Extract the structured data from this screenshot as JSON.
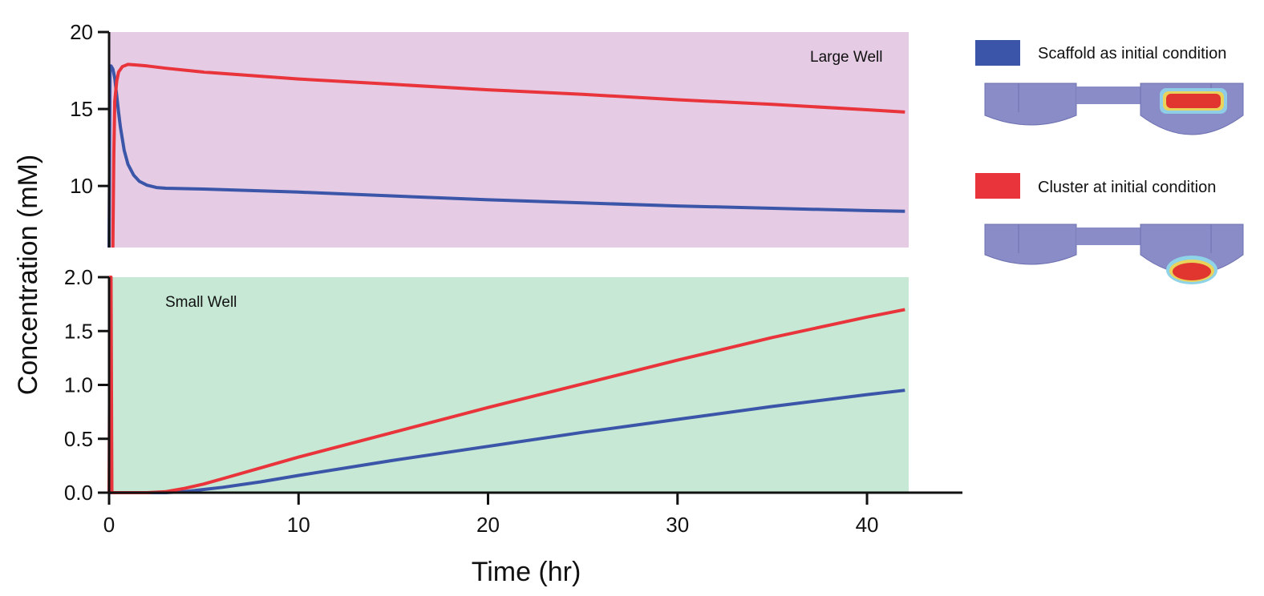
{
  "chart_data": [
    {
      "type": "line",
      "panel_label": "Large Well",
      "background": "#e5cbe4",
      "ylim": [
        6,
        20
      ],
      "yticks": [
        "10",
        "15",
        "20"
      ],
      "ytick_values": [
        10,
        15,
        20
      ],
      "xlim": [
        0,
        45
      ],
      "series": [
        {
          "name": "Scaffold as initial condition",
          "color": "#3b55a8",
          "x": [
            0,
            0.05,
            0.1,
            0.2,
            0.3,
            0.4,
            0.5,
            0.6,
            0.8,
            1.0,
            1.3,
            1.6,
            2.0,
            2.5,
            3.0,
            5,
            10,
            15,
            20,
            25,
            30,
            35,
            40,
            42
          ],
          "y": [
            6,
            17.7,
            17.8,
            17.6,
            17.0,
            15.9,
            14.8,
            13.8,
            12.3,
            11.4,
            10.7,
            10.3,
            10.05,
            9.9,
            9.85,
            9.8,
            9.6,
            9.35,
            9.1,
            8.9,
            8.7,
            8.55,
            8.4,
            8.35
          ]
        },
        {
          "name": "Cluster at initial condition",
          "color": "#e8343a",
          "x": [
            0.2,
            0.25,
            0.3,
            0.4,
            0.5,
            0.7,
            1.0,
            1.5,
            2,
            3,
            5,
            10,
            15,
            20,
            25,
            30,
            35,
            40,
            42
          ],
          "y": [
            6,
            12,
            15.5,
            16.8,
            17.4,
            17.75,
            17.9,
            17.85,
            17.8,
            17.65,
            17.4,
            16.95,
            16.6,
            16.25,
            15.95,
            15.6,
            15.3,
            14.95,
            14.8
          ]
        }
      ]
    },
    {
      "type": "line",
      "panel_label": "Small Well",
      "background": "#c6e8d5",
      "ylim": [
        0,
        2.0
      ],
      "yticks": [
        "0.0",
        "0.5",
        "1.0",
        "1.5",
        "2.0"
      ],
      "ytick_values": [
        0,
        0.5,
        1.0,
        1.5,
        2.0
      ],
      "xlim": [
        0,
        45
      ],
      "xticks": [
        "0",
        "10",
        "20",
        "30",
        "40"
      ],
      "xtick_values": [
        0,
        10,
        20,
        30,
        40
      ],
      "xlabel": "Time (hr)",
      "series": [
        {
          "name": "Scaffold as initial condition",
          "color": "#3b55a8",
          "x": [
            0,
            1,
            2,
            3,
            4,
            5,
            6,
            8,
            10,
            15,
            20,
            25,
            30,
            35,
            40,
            42
          ],
          "y": [
            0,
            0,
            0,
            0,
            0.01,
            0.03,
            0.05,
            0.1,
            0.16,
            0.3,
            0.43,
            0.56,
            0.68,
            0.8,
            0.91,
            0.95
          ]
        },
        {
          "name": "Cluster at initial condition",
          "color": "#e8343a",
          "x": [
            0,
            0.05,
            0.1,
            0.15,
            0.3,
            1,
            2,
            3,
            4,
            5,
            6,
            8,
            10,
            15,
            20,
            25,
            30,
            35,
            40,
            42
          ],
          "y": [
            0,
            2.0,
            2.0,
            0,
            0,
            0,
            0,
            0.01,
            0.04,
            0.08,
            0.13,
            0.23,
            0.33,
            0.56,
            0.79,
            1.01,
            1.23,
            1.44,
            1.63,
            1.7
          ]
        }
      ]
    }
  ],
  "shared": {
    "ylabel": "Concentration (mM)"
  },
  "legend": {
    "items": [
      {
        "label": "Scaffold as initial condition",
        "color": "#3b55a8"
      },
      {
        "label": "Cluster at initial condition",
        "color": "#e8343a"
      }
    ]
  }
}
